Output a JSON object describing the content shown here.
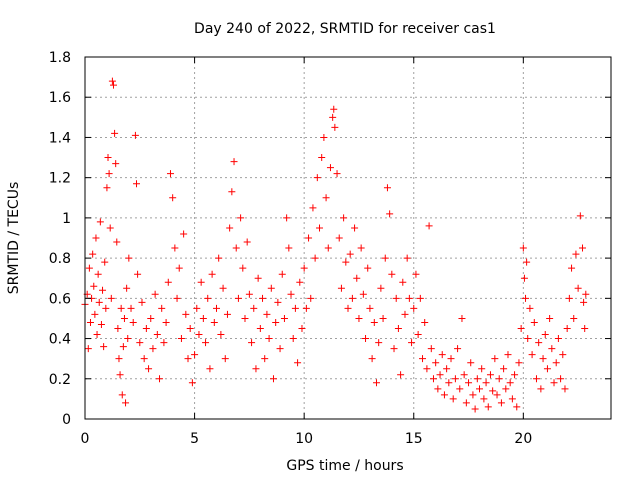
{
  "chart_data": {
    "type": "scatter",
    "title": "Day 240 of 2022, SRMTID for receiver cas1",
    "xlabel": "GPS time / hours",
    "ylabel": "SRMTID / TECUs",
    "xlim": [
      0,
      24
    ],
    "ylim": [
      0,
      1.8
    ],
    "xticks": [
      0,
      5,
      10,
      15,
      20
    ],
    "yticks": [
      0,
      0.2,
      0.4,
      0.6,
      0.8,
      1,
      1.2,
      1.4,
      1.6,
      1.8
    ],
    "xtick_labels": [
      "0",
      "5",
      "10",
      "15",
      "20"
    ],
    "ytick_labels": [
      "0",
      "0.2",
      "0.4",
      "0.6",
      "0.8",
      "1",
      "1.2",
      "1.4",
      "1.6",
      "1.8"
    ],
    "grid": true,
    "marker": "plus",
    "color": "#ff0000",
    "series": [
      {
        "name": "SRMTID",
        "points": [
          [
            0.0,
            0.57
          ],
          [
            0.1,
            0.62
          ],
          [
            0.15,
            0.35
          ],
          [
            0.2,
            0.75
          ],
          [
            0.25,
            0.48
          ],
          [
            0.3,
            0.6
          ],
          [
            0.35,
            0.82
          ],
          [
            0.4,
            0.66
          ],
          [
            0.45,
            0.52
          ],
          [
            0.5,
            0.9
          ],
          [
            0.55,
            0.42
          ],
          [
            0.6,
            0.72
          ],
          [
            0.65,
            0.58
          ],
          [
            0.7,
            0.98
          ],
          [
            0.75,
            0.47
          ],
          [
            0.8,
            0.64
          ],
          [
            0.85,
            0.36
          ],
          [
            0.9,
            0.78
          ],
          [
            0.95,
            0.55
          ],
          [
            1.0,
            1.15
          ],
          [
            1.05,
            1.3
          ],
          [
            1.1,
            1.22
          ],
          [
            1.15,
            0.95
          ],
          [
            1.2,
            0.6
          ],
          [
            1.25,
            1.68
          ],
          [
            1.3,
            1.66
          ],
          [
            1.35,
            1.42
          ],
          [
            1.4,
            1.27
          ],
          [
            1.45,
            0.88
          ],
          [
            1.5,
            0.45
          ],
          [
            1.55,
            0.3
          ],
          [
            1.6,
            0.22
          ],
          [
            1.65,
            0.55
          ],
          [
            1.7,
            0.12
          ],
          [
            1.75,
            0.36
          ],
          [
            1.8,
            0.5
          ],
          [
            1.85,
            0.08
          ],
          [
            1.9,
            0.65
          ],
          [
            1.95,
            0.4
          ],
          [
            2.0,
            0.8
          ],
          [
            2.1,
            0.55
          ],
          [
            2.2,
            0.48
          ],
          [
            2.3,
            1.41
          ],
          [
            2.35,
            1.17
          ],
          [
            2.4,
            0.72
          ],
          [
            2.5,
            0.38
          ],
          [
            2.6,
            0.58
          ],
          [
            2.7,
            0.3
          ],
          [
            2.8,
            0.45
          ],
          [
            2.9,
            0.25
          ],
          [
            3.0,
            0.5
          ],
          [
            3.1,
            0.35
          ],
          [
            3.2,
            0.62
          ],
          [
            3.3,
            0.42
          ],
          [
            3.4,
            0.2
          ],
          [
            3.5,
            0.55
          ],
          [
            3.6,
            0.38
          ],
          [
            3.7,
            0.48
          ],
          [
            3.8,
            0.68
          ],
          [
            3.9,
            1.22
          ],
          [
            4.0,
            1.1
          ],
          [
            4.1,
            0.85
          ],
          [
            4.2,
            0.6
          ],
          [
            4.3,
            0.75
          ],
          [
            4.4,
            0.4
          ],
          [
            4.5,
            0.92
          ],
          [
            4.6,
            0.52
          ],
          [
            4.7,
            0.3
          ],
          [
            4.8,
            0.45
          ],
          [
            4.9,
            0.18
          ],
          [
            5.0,
            0.32
          ],
          [
            5.1,
            0.55
          ],
          [
            5.2,
            0.42
          ],
          [
            5.3,
            0.68
          ],
          [
            5.4,
            0.5
          ],
          [
            5.5,
            0.38
          ],
          [
            5.6,
            0.6
          ],
          [
            5.7,
            0.25
          ],
          [
            5.8,
            0.72
          ],
          [
            5.9,
            0.48
          ],
          [
            6.0,
            0.55
          ],
          [
            6.1,
            0.8
          ],
          [
            6.2,
            0.42
          ],
          [
            6.3,
            0.65
          ],
          [
            6.4,
            0.3
          ],
          [
            6.5,
            0.52
          ],
          [
            6.6,
            0.95
          ],
          [
            6.7,
            1.13
          ],
          [
            6.8,
            1.28
          ],
          [
            6.9,
            0.85
          ],
          [
            7.0,
            0.6
          ],
          [
            7.1,
            1.0
          ],
          [
            7.2,
            0.75
          ],
          [
            7.3,
            0.5
          ],
          [
            7.4,
            0.88
          ],
          [
            7.5,
            0.62
          ],
          [
            7.6,
            0.38
          ],
          [
            7.7,
            0.55
          ],
          [
            7.8,
            0.25
          ],
          [
            7.9,
            0.7
          ],
          [
            8.0,
            0.45
          ],
          [
            8.1,
            0.6
          ],
          [
            8.2,
            0.3
          ],
          [
            8.3,
            0.52
          ],
          [
            8.4,
            0.4
          ],
          [
            8.5,
            0.65
          ],
          [
            8.6,
            0.2
          ],
          [
            8.7,
            0.48
          ],
          [
            8.8,
            0.58
          ],
          [
            8.9,
            0.35
          ],
          [
            9.0,
            0.72
          ],
          [
            9.1,
            0.5
          ],
          [
            9.2,
            1.0
          ],
          [
            9.3,
            0.85
          ],
          [
            9.4,
            0.62
          ],
          [
            9.5,
            0.4
          ],
          [
            9.6,
            0.55
          ],
          [
            9.7,
            0.28
          ],
          [
            9.8,
            0.68
          ],
          [
            9.9,
            0.45
          ],
          [
            10.0,
            0.75
          ],
          [
            10.1,
            0.55
          ],
          [
            10.2,
            0.9
          ],
          [
            10.3,
            0.6
          ],
          [
            10.4,
            1.05
          ],
          [
            10.5,
            0.8
          ],
          [
            10.6,
            1.2
          ],
          [
            10.7,
            0.95
          ],
          [
            10.8,
            1.3
          ],
          [
            10.9,
            1.4
          ],
          [
            11.0,
            1.1
          ],
          [
            11.1,
            0.85
          ],
          [
            11.2,
            1.25
          ],
          [
            11.3,
            1.5
          ],
          [
            11.35,
            1.54
          ],
          [
            11.4,
            1.45
          ],
          [
            11.5,
            1.22
          ],
          [
            11.6,
            0.9
          ],
          [
            11.7,
            0.65
          ],
          [
            11.8,
            1.0
          ],
          [
            11.9,
            0.78
          ],
          [
            12.0,
            0.55
          ],
          [
            12.1,
            0.82
          ],
          [
            12.2,
            0.6
          ],
          [
            12.3,
            0.95
          ],
          [
            12.4,
            0.7
          ],
          [
            12.5,
            0.5
          ],
          [
            12.6,
            0.85
          ],
          [
            12.7,
            0.62
          ],
          [
            12.8,
            0.4
          ],
          [
            12.9,
            0.75
          ],
          [
            13.0,
            0.55
          ],
          [
            13.1,
            0.3
          ],
          [
            13.2,
            0.48
          ],
          [
            13.3,
            0.18
          ],
          [
            13.4,
            0.38
          ],
          [
            13.5,
            0.65
          ],
          [
            13.6,
            0.5
          ],
          [
            13.7,
            0.8
          ],
          [
            13.8,
            1.15
          ],
          [
            13.9,
            1.02
          ],
          [
            14.0,
            0.72
          ],
          [
            14.1,
            0.35
          ],
          [
            14.2,
            0.6
          ],
          [
            14.3,
            0.45
          ],
          [
            14.4,
            0.22
          ],
          [
            14.5,
            0.68
          ],
          [
            14.6,
            0.52
          ],
          [
            14.7,
            0.8
          ],
          [
            14.8,
            0.6
          ],
          [
            14.9,
            0.38
          ],
          [
            15.0,
            0.55
          ],
          [
            15.1,
            0.72
          ],
          [
            15.2,
            0.42
          ],
          [
            15.3,
            0.6
          ],
          [
            15.4,
            0.3
          ],
          [
            15.5,
            0.48
          ],
          [
            15.6,
            0.25
          ],
          [
            15.7,
            0.96
          ],
          [
            15.8,
            0.35
          ],
          [
            15.9,
            0.2
          ],
          [
            16.0,
            0.28
          ],
          [
            16.1,
            0.15
          ],
          [
            16.2,
            0.22
          ],
          [
            16.3,
            0.32
          ],
          [
            16.4,
            0.12
          ],
          [
            16.5,
            0.25
          ],
          [
            16.6,
            0.18
          ],
          [
            16.7,
            0.3
          ],
          [
            16.8,
            0.1
          ],
          [
            16.9,
            0.2
          ],
          [
            17.0,
            0.35
          ],
          [
            17.1,
            0.15
          ],
          [
            17.2,
            0.5
          ],
          [
            17.3,
            0.22
          ],
          [
            17.4,
            0.08
          ],
          [
            17.5,
            0.18
          ],
          [
            17.6,
            0.28
          ],
          [
            17.7,
            0.12
          ],
          [
            17.8,
            0.05
          ],
          [
            17.9,
            0.2
          ],
          [
            18.0,
            0.15
          ],
          [
            18.1,
            0.25
          ],
          [
            18.2,
            0.1
          ],
          [
            18.3,
            0.18
          ],
          [
            18.4,
            0.06
          ],
          [
            18.5,
            0.22
          ],
          [
            18.6,
            0.14
          ],
          [
            18.7,
            0.3
          ],
          [
            18.8,
            0.12
          ],
          [
            18.9,
            0.2
          ],
          [
            19.0,
            0.08
          ],
          [
            19.1,
            0.25
          ],
          [
            19.2,
            0.15
          ],
          [
            19.3,
            0.32
          ],
          [
            19.4,
            0.18
          ],
          [
            19.5,
            0.1
          ],
          [
            19.6,
            0.22
          ],
          [
            19.7,
            0.06
          ],
          [
            19.8,
            0.28
          ],
          [
            19.9,
            0.45
          ],
          [
            20.0,
            0.85
          ],
          [
            20.05,
            0.7
          ],
          [
            20.1,
            0.6
          ],
          [
            20.15,
            0.78
          ],
          [
            20.2,
            0.4
          ],
          [
            20.3,
            0.55
          ],
          [
            20.4,
            0.32
          ],
          [
            20.5,
            0.48
          ],
          [
            20.6,
            0.2
          ],
          [
            20.7,
            0.38
          ],
          [
            20.8,
            0.15
          ],
          [
            20.9,
            0.3
          ],
          [
            21.0,
            0.42
          ],
          [
            21.1,
            0.25
          ],
          [
            21.2,
            0.5
          ],
          [
            21.3,
            0.35
          ],
          [
            21.4,
            0.18
          ],
          [
            21.5,
            0.28
          ],
          [
            21.6,
            0.4
          ],
          [
            21.7,
            0.2
          ],
          [
            21.8,
            0.32
          ],
          [
            21.9,
            0.15
          ],
          [
            22.0,
            0.45
          ],
          [
            22.1,
            0.6
          ],
          [
            22.2,
            0.75
          ],
          [
            22.3,
            0.5
          ],
          [
            22.4,
            0.82
          ],
          [
            22.5,
            0.65
          ],
          [
            22.6,
            1.01
          ],
          [
            22.7,
            0.85
          ],
          [
            22.75,
            0.58
          ],
          [
            22.8,
            0.45
          ],
          [
            22.85,
            0.62
          ]
        ]
      }
    ]
  }
}
